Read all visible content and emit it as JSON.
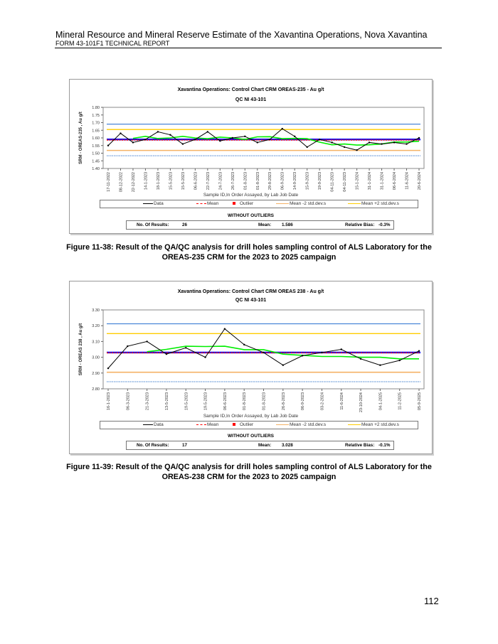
{
  "header": {
    "title": "Mineral Resource and Mineral Reserve Estimate of the Xavantina Operations, Nova Xavantina",
    "subtitle": "FORM 43-101F1 TECHNICAL REPORT"
  },
  "legend": {
    "data": "Data",
    "mean": "Mean",
    "outlier": "Outlier",
    "minus2": "Mean -2 std.dev.s",
    "plus2": "Mean +2 std.dev.s"
  },
  "stats_labels": {
    "heading": "WITHOUT OUTLIERS",
    "n": "No. Of Results:",
    "mean": "Mean:",
    "bias": "Relative Bias:"
  },
  "colors": {
    "data": "#000000",
    "mean": "#ff0000",
    "certified": "#0000ff",
    "moving_avg": "#00ee00",
    "plus2": "#ffcc00",
    "minus2": "#f4b266",
    "plus3": "#4a86d8",
    "minus3": "#6a9ad8",
    "outlier": "#ff0000"
  },
  "chart_data": [
    {
      "type": "line",
      "title": "Xavantina Operations: Control Chart CRM OREAS-235 - Au g/t",
      "subtitle": "QC NI 43-101",
      "xlabel": "Sample ID,In Order Assayed, by Lab Job Date",
      "ylabel": "SRM - OREAS-235 , Au g/t",
      "ylim": [
        1.4,
        1.8
      ],
      "yticks": [
        "1.40",
        "1.45",
        "1.50",
        "1.55",
        "1.60",
        "1.65",
        "1.70",
        "1.75",
        "1.80"
      ],
      "categories": [
        "17-11-2022",
        "08-12-2022",
        "22-12-2022",
        "14-1-2023",
        "18-1-2023",
        "15-5-2023",
        "15-5-2023",
        "06-6-2023",
        "22-7-2023",
        "24-7-2023",
        "26-7-2023",
        "01-8-2023",
        "01-8-2023",
        "29-8-2023",
        "06-9-2023",
        "14-9-2023",
        "15-9-2023",
        "19-9-2023",
        "04-11-2023",
        "04-11-2023",
        "15-1-2024",
        "31-1-2024",
        "31-1-2024",
        "06-6-2024",
        "11-6-2024",
        "20-6-2024"
      ],
      "series": [
        {
          "name": "Data",
          "values": [
            1.55,
            1.63,
            1.57,
            1.59,
            1.64,
            1.62,
            1.56,
            1.59,
            1.64,
            1.58,
            1.6,
            1.61,
            1.57,
            1.59,
            1.66,
            1.61,
            1.54,
            1.59,
            1.57,
            1.54,
            1.52,
            1.57,
            1.56,
            1.57,
            1.56,
            1.6
          ]
        },
        {
          "name": "Moving average",
          "values": [
            null,
            null,
            1.597,
            1.61,
            1.596,
            1.6,
            1.61,
            1.6,
            1.595,
            1.605,
            1.6,
            1.59,
            1.607,
            1.608,
            1.595,
            1.597,
            1.595,
            1.572,
            1.555,
            1.56,
            1.553,
            1.555,
            1.56,
            1.573,
            1.573,
            1.578
          ]
        }
      ],
      "reference_lines": {
        "plus3": 1.69,
        "plus2": 1.655,
        "certified": 1.59,
        "mean": 1.586,
        "minus2": 1.518,
        "minus3": 1.483
      },
      "stats": {
        "n": "26",
        "mean": "1.586",
        "bias": "-0.3%"
      }
    },
    {
      "type": "line",
      "title": "Xavantina Operations: Control Chart CRM OREAS 238 - Au g/t",
      "subtitle": "QC NI 43-101",
      "xlabel": "Sample ID,In Order Assayed, by Lab Job Date",
      "ylabel": "SRM - OREAS 238 , Au g/t",
      "ylim": [
        2.8,
        3.3
      ],
      "yticks": [
        "2.80",
        "2.90",
        "3.00",
        "3.10",
        "3.20",
        "3.30"
      ],
      "categories": [
        "16-1-2023",
        "06-3-2023",
        "21-3-2023",
        "13-5-2023",
        "19-5-2023",
        "19-5-2023",
        "06-6-2023",
        "01-8-2023",
        "01-8-2023",
        "26-8-2023",
        "06-9-2023",
        "03-2-2024",
        "11-6-2024",
        "23-10-2024",
        "04-1-2025",
        "11-2-2025",
        "05-9-2025"
      ],
      "series": [
        {
          "name": "Data",
          "values": [
            2.93,
            3.07,
            3.1,
            3.02,
            3.06,
            3.0,
            3.18,
            3.08,
            3.03,
            2.95,
            3.01,
            3.03,
            3.05,
            2.99,
            2.95,
            2.98,
            3.04
          ]
        },
        {
          "name": "Moving average",
          "values": [
            null,
            null,
            3.035,
            3.05,
            3.07,
            3.068,
            3.07,
            3.048,
            3.048,
            3.02,
            3.012,
            3.005,
            3.005,
            3.0,
            3.0,
            2.99,
            2.99
          ]
        }
      ],
      "reference_lines": {
        "plus3": 3.212,
        "plus2": 3.15,
        "certified": 3.03,
        "mean": 3.028,
        "minus2": 2.905,
        "minus3": 2.845
      },
      "stats": {
        "n": "17",
        "mean": "3.028",
        "bias": "-0.1%"
      }
    }
  ],
  "captions": [
    "Figure 11-38: Result of the QA/QC analysis for drill holes sampling control of ALS Laboratory for the OREAS-235 CRM for the 2023 to 2025 campaign",
    "Figure 11-39: Result of the QA/QC analysis for drill holes sampling control of ALS Laboratory for the OREAS-238 CRM for the 2023 to 2025 campaign"
  ],
  "page_number": "112"
}
